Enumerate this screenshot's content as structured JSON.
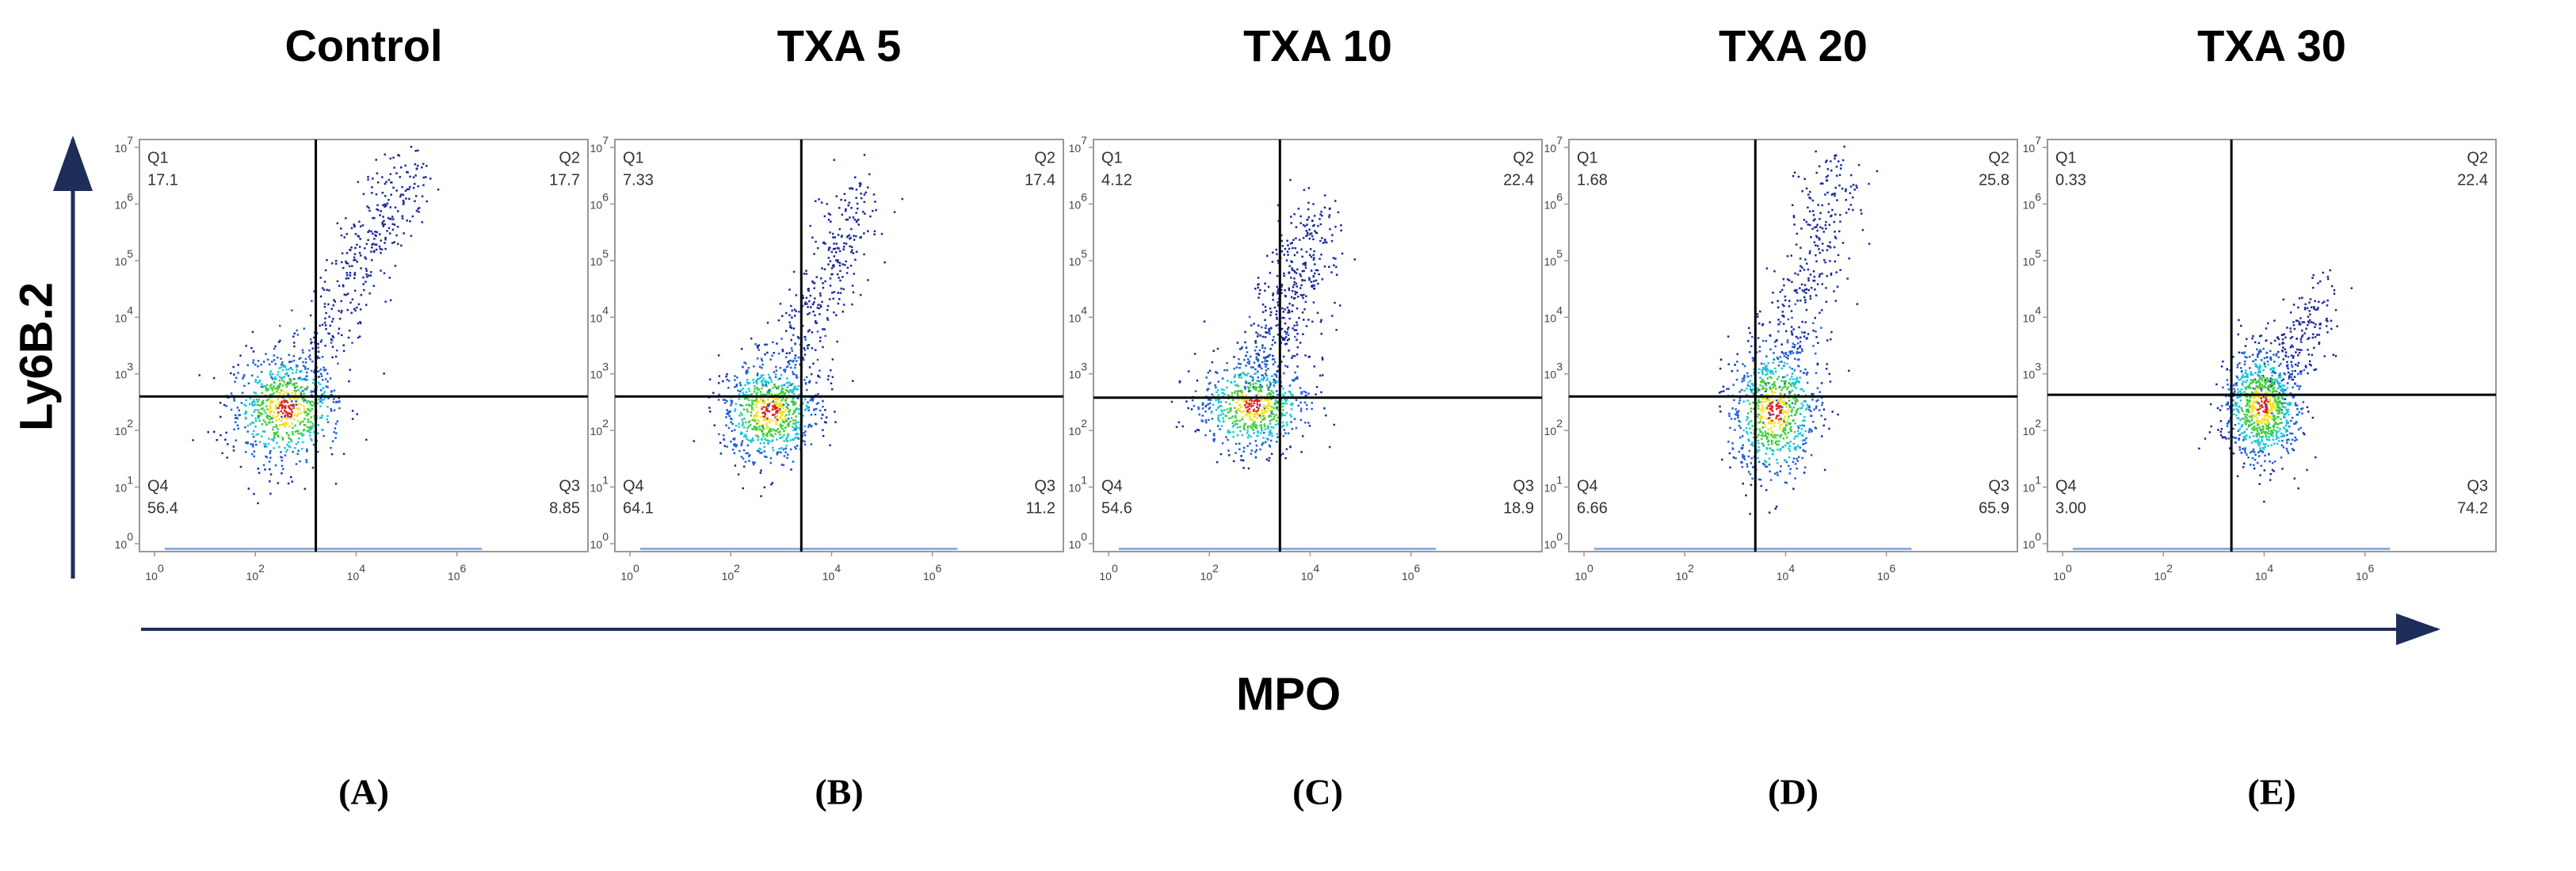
{
  "ylabel": "Ly6B.2",
  "xlabel": "MPO",
  "xlim": [
    -0.3,
    8.6
  ],
  "ylim": [
    -0.14,
    7.14
  ],
  "xticks": [
    {
      "value": 0,
      "base": "10",
      "exp": "0"
    },
    {
      "value": 2,
      "base": "10",
      "exp": "2"
    },
    {
      "value": 4,
      "base": "10",
      "exp": "4"
    },
    {
      "value": 6,
      "base": "10",
      "exp": "6"
    }
  ],
  "yticks": [
    {
      "value": 0,
      "base": "10",
      "exp": "0"
    },
    {
      "value": 1,
      "base": "10",
      "exp": "1"
    },
    {
      "value": 2,
      "base": "10",
      "exp": "2"
    },
    {
      "value": 3,
      "base": "10",
      "exp": "3"
    },
    {
      "value": 4,
      "base": "10",
      "exp": "4"
    },
    {
      "value": 5,
      "base": "10",
      "exp": "5"
    },
    {
      "value": 6,
      "base": "10",
      "exp": "6"
    },
    {
      "value": 7,
      "base": "10",
      "exp": "7"
    }
  ],
  "panels": [
    {
      "title": "Control",
      "label": "(A)",
      "gate_x": 3.2,
      "gate_y": 2.6,
      "quadrants": [
        {
          "name": "Q1",
          "value": "17.1"
        },
        {
          "name": "Q2",
          "value": "17.7"
        },
        {
          "name": "Q3",
          "value": "8.85"
        },
        {
          "name": "Q4",
          "value": "56.4"
        }
      ]
    },
    {
      "title": "TXA 5",
      "label": "(B)",
      "gate_x": 3.4,
      "gate_y": 2.6,
      "quadrants": [
        {
          "name": "Q1",
          "value": "7.33"
        },
        {
          "name": "Q2",
          "value": "17.4"
        },
        {
          "name": "Q3",
          "value": "11.2"
        },
        {
          "name": "Q4",
          "value": "64.1"
        }
      ]
    },
    {
      "title": "TXA 10",
      "label": "(C)",
      "gate_x": 3.4,
      "gate_y": 2.58,
      "quadrants": [
        {
          "name": "Q1",
          "value": "4.12"
        },
        {
          "name": "Q2",
          "value": "22.4"
        },
        {
          "name": "Q3",
          "value": "18.9"
        },
        {
          "name": "Q4",
          "value": "54.6"
        }
      ]
    },
    {
      "title": "TXA 20",
      "label": "(D)",
      "gate_x": 3.4,
      "gate_y": 2.6,
      "quadrants": [
        {
          "name": "Q1",
          "value": "1.68"
        },
        {
          "name": "Q2",
          "value": "25.8"
        },
        {
          "name": "Q3",
          "value": "65.9"
        },
        {
          "name": "Q4",
          "value": "6.66"
        }
      ]
    },
    {
      "title": "TXA 30",
      "label": "(E)",
      "gate_x": 3.35,
      "gate_y": 2.63,
      "quadrants": [
        {
          "name": "Q1",
          "value": "0.33"
        },
        {
          "name": "Q2",
          "value": "22.4"
        },
        {
          "name": "Q3",
          "value": "74.2"
        },
        {
          "name": "Q4",
          "value": "3.00"
        }
      ]
    }
  ]
}
